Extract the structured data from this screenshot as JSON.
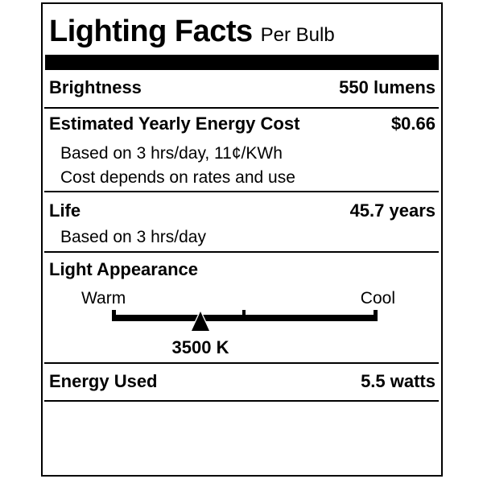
{
  "label": {
    "title": "Lighting Facts",
    "subtitle": "Per Bulb",
    "rows": {
      "brightness": {
        "label": "Brightness",
        "value": "550 lumens"
      },
      "energy_cost": {
        "label": "Estimated Yearly Energy Cost",
        "value": "$0.66",
        "notes": [
          "Based on 3 hrs/day, 11¢/KWh",
          "Cost depends on rates and use"
        ]
      },
      "life": {
        "label": "Life",
        "value": "45.7 years",
        "notes": [
          "Based on 3 hrs/day"
        ]
      },
      "light_appearance": {
        "label": "Light Appearance",
        "warm_label": "Warm",
        "cool_label": "Cool",
        "kelvin_value": "3500 K"
      },
      "energy_used": {
        "label": "Energy Used",
        "value": "5.5 watts"
      }
    },
    "colors": {
      "ink": "#000000",
      "background": "#ffffff"
    }
  }
}
